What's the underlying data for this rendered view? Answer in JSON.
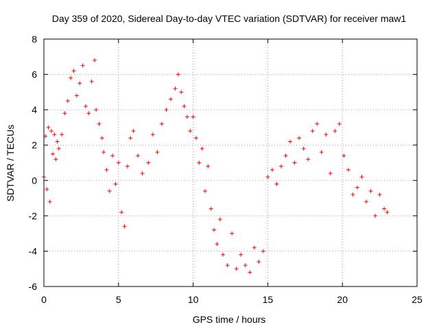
{
  "chart_data": {
    "type": "scatter",
    "title": "Day 359 of 2020, Sidereal Day-to-day VTEC variation (SDTVAR) for receiver maw1",
    "xlabel": "GPS time / hours",
    "ylabel": "SDTVAR / TECUs",
    "xlim": [
      0,
      25
    ],
    "ylim": [
      -6,
      8
    ],
    "xticks": [
      0,
      5,
      10,
      15,
      20,
      25
    ],
    "yticks": [
      -6,
      -4,
      -2,
      0,
      2,
      4,
      6,
      8
    ],
    "xtick_labels": [
      "0",
      "5",
      "10",
      "15",
      "20",
      "25"
    ],
    "ytick_labels": [
      "-6",
      "-4",
      "-2",
      "0",
      "2",
      "4",
      "6",
      "8"
    ],
    "grid": true,
    "marker": "+",
    "marker_color": "#ff0000",
    "series": [
      {
        "name": "SDTVAR",
        "note": "Dense '+' markers; representative points along the observed envelope",
        "x": [
          0.0,
          0.1,
          0.2,
          0.3,
          0.4,
          0.5,
          0.6,
          0.7,
          0.8,
          0.9,
          1.0,
          1.2,
          1.4,
          1.6,
          1.8,
          2.0,
          2.2,
          2.4,
          2.6,
          2.8,
          3.0,
          3.2,
          3.4,
          3.5,
          3.7,
          3.9,
          4.0,
          4.2,
          4.4,
          4.6,
          4.8,
          5.0,
          5.2,
          5.4,
          5.6,
          5.8,
          6.0,
          6.3,
          6.6,
          7.0,
          7.3,
          7.6,
          7.9,
          8.2,
          8.5,
          8.8,
          9.0,
          9.2,
          9.4,
          9.6,
          9.8,
          10.0,
          10.2,
          10.4,
          10.6,
          10.8,
          11.0,
          11.2,
          11.4,
          11.6,
          11.8,
          12.0,
          12.3,
          12.6,
          12.9,
          13.2,
          13.5,
          13.8,
          14.1,
          14.4,
          14.7,
          15.0,
          15.3,
          15.6,
          15.9,
          16.2,
          16.5,
          16.8,
          17.1,
          17.4,
          17.7,
          18.0,
          18.3,
          18.6,
          18.9,
          19.2,
          19.5,
          19.8,
          20.1,
          20.4,
          20.7,
          21.0,
          21.3,
          21.6,
          21.9,
          22.2,
          22.5,
          22.8,
          23.0
        ],
        "y": [
          0.2,
          2.5,
          -0.5,
          3.0,
          -1.2,
          2.8,
          1.5,
          2.6,
          1.2,
          2.2,
          1.8,
          2.6,
          3.8,
          4.5,
          5.8,
          6.2,
          4.8,
          5.5,
          6.5,
          4.2,
          3.8,
          5.6,
          6.8,
          4.0,
          3.2,
          2.4,
          1.6,
          0.6,
          -0.6,
          1.4,
          -0.2,
          1.0,
          -1.8,
          -2.6,
          0.8,
          2.4,
          2.8,
          1.4,
          0.4,
          1.0,
          2.6,
          1.6,
          3.2,
          4.0,
          4.6,
          5.2,
          6.0,
          5.0,
          4.2,
          3.6,
          2.8,
          3.6,
          2.4,
          1.0,
          1.8,
          -0.6,
          0.8,
          -1.6,
          -2.8,
          -3.6,
          -2.2,
          -4.2,
          -4.8,
          -3.0,
          -5.0,
          -4.2,
          -4.8,
          -5.2,
          -3.8,
          -4.6,
          -4.0,
          0.2,
          0.6,
          -0.2,
          0.8,
          1.4,
          2.2,
          1.0,
          2.4,
          1.8,
          1.2,
          2.8,
          3.2,
          1.6,
          2.6,
          0.4,
          2.8,
          3.2,
          1.4,
          0.6,
          -0.8,
          -0.4,
          0.2,
          -1.2,
          -0.6,
          -2.0,
          -0.8,
          -1.6,
          -1.8
        ]
      }
    ]
  }
}
